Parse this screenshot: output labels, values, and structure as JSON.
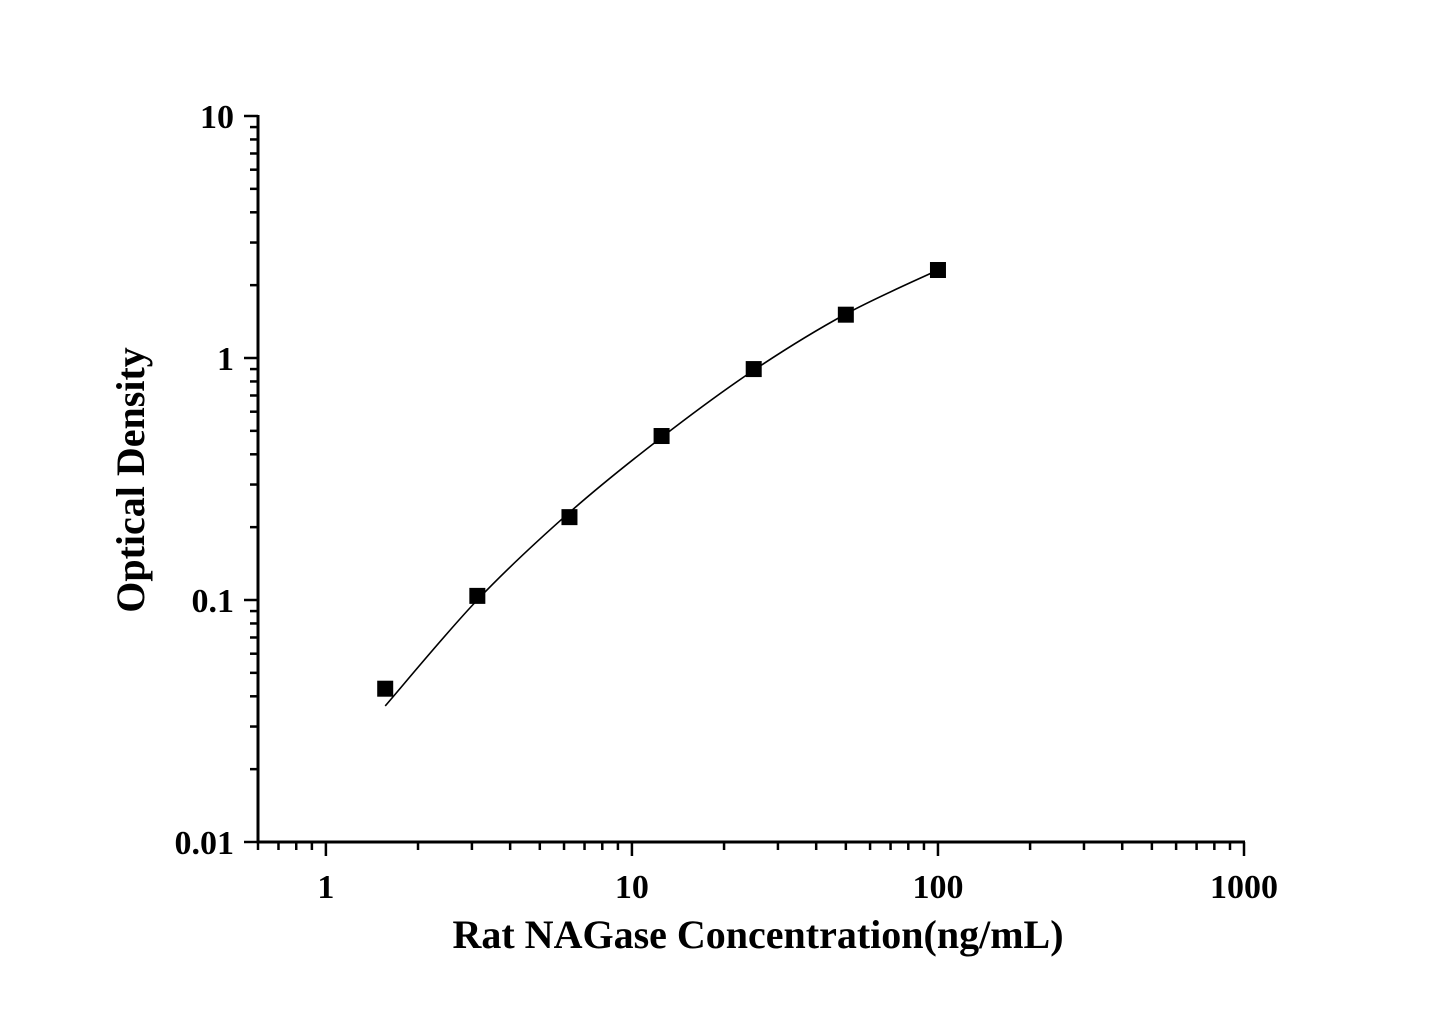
{
  "chart_data": {
    "type": "scatter",
    "title": "",
    "xlabel": "Rat NAGase Concentration(ng/mL)",
    "ylabel": "Optical Density",
    "x_scale": "log",
    "y_scale": "log",
    "xlim": [
      0.6,
      1000
    ],
    "ylim": [
      0.01,
      10
    ],
    "x_ticks": [
      1,
      10,
      100,
      1000
    ],
    "x_tick_labels": [
      "1",
      "10",
      "100",
      "1000"
    ],
    "y_ticks": [
      0.01,
      0.1,
      1,
      10
    ],
    "y_tick_labels": [
      "0.01",
      "0.1",
      "1",
      "10"
    ],
    "grid": false,
    "marker": "square",
    "color": "#000000",
    "series": [
      {
        "x": [
          1.5625,
          3.125,
          6.25,
          12.5,
          25,
          50,
          100
        ],
        "y": [
          0.043,
          0.104,
          0.22,
          0.476,
          0.9,
          1.51,
          2.31
        ]
      }
    ],
    "fit_curve": {
      "x": [
        1.5625,
        3.125,
        6.25,
        12.5,
        25,
        50,
        100
      ],
      "y": [
        0.0365,
        0.1,
        0.23,
        0.47,
        0.89,
        1.52,
        2.31
      ]
    }
  }
}
